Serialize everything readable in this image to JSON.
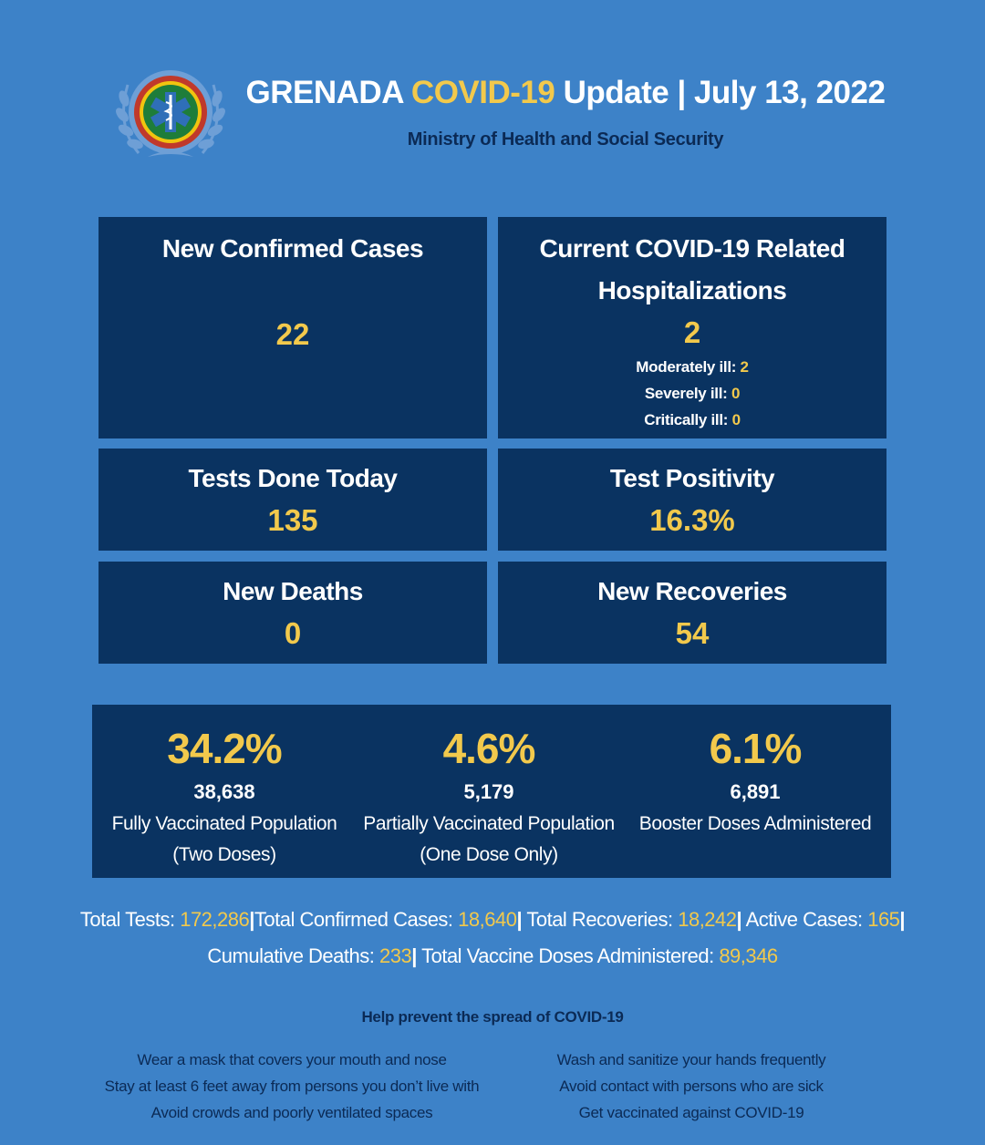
{
  "header": {
    "title_part1": "GRENADA",
    "title_part2": "COVID-19",
    "title_part3": "Update | July 13, 2022",
    "subtitle": "Ministry of Health and Social Security",
    "logo_icon": "ministry-emblem-icon"
  },
  "stats": {
    "new_cases": {
      "label": "New Confirmed Cases",
      "value": "22"
    },
    "hospitalizations": {
      "label_line1": "Current COVID-19 Related",
      "label_line2": "Hospitalizations",
      "value": "2",
      "moderate_label": "Moderately ill:",
      "moderate_value": "2",
      "severe_label": "Severely ill:",
      "severe_value": "0",
      "critical_label": "Critically ill:",
      "critical_value": "0"
    },
    "tests_today": {
      "label": "Tests Done Today",
      "value": "135"
    },
    "test_positivity": {
      "label": "Test Positivity",
      "value": "16.3%"
    },
    "new_deaths": {
      "label": "New Deaths",
      "value": "0"
    },
    "new_recoveries": {
      "label": "New Recoveries",
      "value": "54"
    }
  },
  "vaccination": [
    {
      "pct": "34.2%",
      "count": "38,638",
      "desc_line1": "Fully Vaccinated Population",
      "desc_line2": "(Two Doses)"
    },
    {
      "pct": "4.6%",
      "count": "5,179",
      "desc_line1": "Partially Vaccinated Population",
      "desc_line2": "(One Dose Only)"
    },
    {
      "pct": "6.1%",
      "count": "6,891",
      "desc_line1": "Booster Doses Administered",
      "desc_line2": ""
    }
  ],
  "totals": {
    "total_tests_label": "Total Tests:",
    "total_tests": "172,286",
    "total_confirmed_label": "Total Confirmed Cases:",
    "total_confirmed": "18,640",
    "total_recoveries_label": "Total Recoveries:",
    "total_recoveries": "18,242",
    "active_cases_label": "Active Cases:",
    "active_cases": "165",
    "cumulative_deaths_label": "Cumulative Deaths:",
    "cumulative_deaths": "233",
    "total_vaccine_label": "Total Vaccine Doses Administered:",
    "total_vaccine": "89,346"
  },
  "prevention": {
    "heading": "Help prevent the spread of COVID-19",
    "left": [
      "Wear a mask that covers your mouth and nose",
      "Stay at least 6 feet away from persons you don’t live with",
      "Avoid crowds and poorly ventilated spaces"
    ],
    "right": [
      "Wash and sanitize your hands frequently",
      "Avoid contact with persons who are sick",
      "Get vaccinated against COVID-19"
    ]
  },
  "colors": {
    "background": "#3d82c8",
    "panel": "#0a3361",
    "accent": "#f2c94c",
    "dark_text": "#0b2a55"
  }
}
